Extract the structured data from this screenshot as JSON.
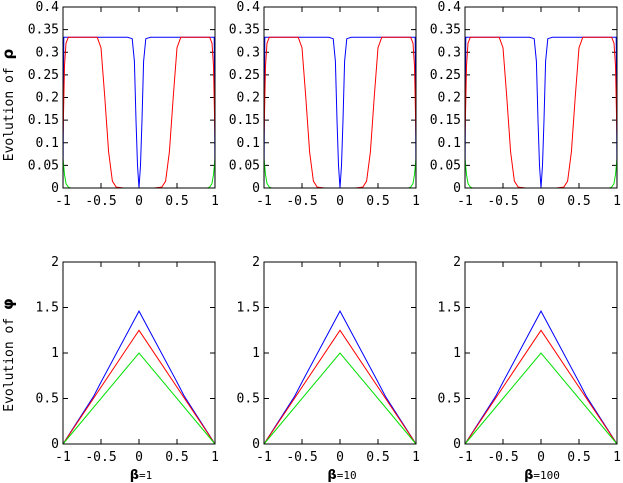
{
  "colors": {
    "blue": "#0000ff",
    "red": "#ff0000",
    "green": "#00e000"
  },
  "row_labels": {
    "rho": {
      "text": "Evolution of ",
      "symbol": "ρ"
    },
    "phi": {
      "text": "Evolution of ",
      "symbol": "φ"
    }
  },
  "column_labels": [
    {
      "symbol": "β",
      "text": "=1"
    },
    {
      "symbol": "β",
      "text": "=10"
    },
    {
      "symbol": "β",
      "text": "=100"
    }
  ],
  "axes": {
    "x_ticks": [
      "-1",
      "-0.5",
      "0",
      "0.5",
      "1"
    ],
    "x_tick_values": [
      -1,
      -0.5,
      0,
      0.5,
      1
    ],
    "rho_y_ticks": [
      "0",
      "0.05",
      "0.1",
      "0.15",
      "0.2",
      "0.25",
      "0.3",
      "0.35",
      "0.4"
    ],
    "rho_y_tick_values": [
      0,
      0.05,
      0.1,
      0.15,
      0.2,
      0.25,
      0.3,
      0.35,
      0.4
    ],
    "phi_y_ticks": [
      "0",
      "0.5",
      "1",
      "1.5",
      "2"
    ],
    "phi_y_tick_values": [
      0,
      0.5,
      1,
      1.5,
      2
    ]
  },
  "chart_data": [
    {
      "type": "line",
      "row": "rho",
      "column": 0,
      "xlim": [
        -1,
        1
      ],
      "ylim": [
        0,
        0.4
      ],
      "grid": false,
      "series": [
        {
          "color": "blue",
          "x": [
            -1,
            -0.995,
            -0.99,
            -0.5,
            -0.15,
            -0.09,
            -0.06,
            -0.04,
            -0.02,
            0,
            0.02,
            0.04,
            0.06,
            0.09,
            0.15,
            0.5,
            0.99,
            0.995,
            1
          ],
          "y": [
            0,
            0.2,
            0.333,
            0.333,
            0.333,
            0.33,
            0.28,
            0.15,
            0.05,
            0,
            0.05,
            0.15,
            0.28,
            0.33,
            0.333,
            0.333,
            0.333,
            0.2,
            0
          ]
        },
        {
          "color": "red",
          "x": [
            -1,
            -0.98,
            -0.96,
            -0.93,
            -0.88,
            -0.55,
            -0.5,
            -0.45,
            -0.4,
            -0.35,
            -0.3,
            -0.2,
            0,
            0.2,
            0.3,
            0.35,
            0.4,
            0.45,
            0.5,
            0.55,
            0.88,
            0.93,
            0.96,
            0.98,
            1
          ],
          "y": [
            0.11,
            0.27,
            0.32,
            0.333,
            0.333,
            0.333,
            0.31,
            0.2,
            0.08,
            0.015,
            0.002,
            0,
            0,
            0,
            0.002,
            0.015,
            0.08,
            0.2,
            0.31,
            0.333,
            0.333,
            0.333,
            0.32,
            0.27,
            0.11
          ]
        },
        {
          "color": "green",
          "x": [
            -1,
            -0.98,
            -0.96,
            -0.93,
            -0.9,
            0,
            0.9,
            0.93,
            0.96,
            0.98,
            1
          ],
          "y": [
            0.065,
            0.03,
            0.01,
            0.002,
            0,
            0,
            0,
            0.002,
            0.01,
            0.03,
            0.065
          ]
        }
      ]
    },
    {
      "type": "line",
      "row": "rho",
      "column": 1,
      "xlim": [
        -1,
        1
      ],
      "ylim": [
        0,
        0.4
      ],
      "grid": false,
      "series": [
        {
          "color": "blue",
          "x": [
            -1,
            -0.995,
            -0.99,
            -0.5,
            -0.15,
            -0.09,
            -0.06,
            -0.04,
            -0.02,
            0,
            0.02,
            0.04,
            0.06,
            0.09,
            0.15,
            0.5,
            0.99,
            0.995,
            1
          ],
          "y": [
            0,
            0.2,
            0.333,
            0.333,
            0.333,
            0.33,
            0.28,
            0.15,
            0.05,
            0,
            0.05,
            0.15,
            0.28,
            0.33,
            0.333,
            0.333,
            0.333,
            0.2,
            0
          ]
        },
        {
          "color": "red",
          "x": [
            -1,
            -0.98,
            -0.96,
            -0.93,
            -0.88,
            -0.55,
            -0.5,
            -0.45,
            -0.4,
            -0.35,
            -0.3,
            -0.2,
            0,
            0.2,
            0.3,
            0.35,
            0.4,
            0.45,
            0.5,
            0.55,
            0.88,
            0.93,
            0.96,
            0.98,
            1
          ],
          "y": [
            0.11,
            0.27,
            0.32,
            0.333,
            0.333,
            0.333,
            0.31,
            0.2,
            0.08,
            0.015,
            0.002,
            0,
            0,
            0,
            0.002,
            0.015,
            0.08,
            0.2,
            0.31,
            0.333,
            0.333,
            0.333,
            0.32,
            0.27,
            0.11
          ]
        },
        {
          "color": "green",
          "x": [
            -1,
            -0.98,
            -0.96,
            -0.93,
            -0.9,
            0,
            0.9,
            0.93,
            0.96,
            0.98,
            1
          ],
          "y": [
            0.065,
            0.03,
            0.01,
            0.002,
            0,
            0,
            0,
            0.002,
            0.01,
            0.03,
            0.065
          ]
        }
      ]
    },
    {
      "type": "line",
      "row": "rho",
      "column": 2,
      "xlim": [
        -1,
        1
      ],
      "ylim": [
        0,
        0.4
      ],
      "grid": false,
      "series": [
        {
          "color": "blue",
          "x": [
            -1,
            -0.995,
            -0.99,
            -0.5,
            -0.15,
            -0.09,
            -0.06,
            -0.04,
            -0.02,
            0,
            0.02,
            0.04,
            0.06,
            0.09,
            0.15,
            0.5,
            0.99,
            0.995,
            1
          ],
          "y": [
            0,
            0.2,
            0.333,
            0.333,
            0.333,
            0.33,
            0.28,
            0.15,
            0.05,
            0,
            0.05,
            0.15,
            0.28,
            0.33,
            0.333,
            0.333,
            0.333,
            0.2,
            0
          ]
        },
        {
          "color": "red",
          "x": [
            -1,
            -0.98,
            -0.96,
            -0.93,
            -0.88,
            -0.55,
            -0.5,
            -0.45,
            -0.4,
            -0.35,
            -0.3,
            -0.2,
            0,
            0.2,
            0.3,
            0.35,
            0.4,
            0.45,
            0.5,
            0.55,
            0.88,
            0.93,
            0.96,
            0.98,
            1
          ],
          "y": [
            0.11,
            0.27,
            0.32,
            0.333,
            0.333,
            0.333,
            0.31,
            0.2,
            0.08,
            0.015,
            0.002,
            0,
            0,
            0,
            0.002,
            0.015,
            0.08,
            0.2,
            0.31,
            0.333,
            0.333,
            0.333,
            0.32,
            0.27,
            0.11
          ]
        },
        {
          "color": "green",
          "x": [
            -1,
            -0.98,
            -0.96,
            -0.93,
            -0.9,
            0,
            0.9,
            0.93,
            0.96,
            0.98,
            1
          ],
          "y": [
            0.065,
            0.03,
            0.01,
            0.002,
            0,
            0,
            0,
            0.002,
            0.01,
            0.03,
            0.065
          ]
        }
      ]
    },
    {
      "type": "line",
      "row": "phi",
      "column": 0,
      "xlim": [
        -1,
        1
      ],
      "ylim": [
        0,
        2
      ],
      "grid": false,
      "series": [
        {
          "color": "blue",
          "x": [
            -1,
            -0.6,
            -0.5,
            0,
            0.5,
            0.6,
            1
          ],
          "y": [
            0,
            0.52,
            0.68,
            1.46,
            0.68,
            0.52,
            0
          ]
        },
        {
          "color": "red",
          "x": [
            -1,
            0,
            1
          ],
          "y": [
            0,
            1.25,
            0
          ]
        },
        {
          "color": "green",
          "x": [
            -1,
            0,
            1
          ],
          "y": [
            0,
            1,
            0
          ]
        }
      ]
    },
    {
      "type": "line",
      "row": "phi",
      "column": 1,
      "xlim": [
        -1,
        1
      ],
      "ylim": [
        0,
        2
      ],
      "grid": false,
      "series": [
        {
          "color": "blue",
          "x": [
            -1,
            -0.6,
            -0.5,
            0,
            0.5,
            0.6,
            1
          ],
          "y": [
            0,
            0.52,
            0.68,
            1.46,
            0.68,
            0.52,
            0
          ]
        },
        {
          "color": "red",
          "x": [
            -1,
            0,
            1
          ],
          "y": [
            0,
            1.25,
            0
          ]
        },
        {
          "color": "green",
          "x": [
            -1,
            0,
            1
          ],
          "y": [
            0,
            1,
            0
          ]
        }
      ]
    },
    {
      "type": "line",
      "row": "phi",
      "column": 2,
      "xlim": [
        -1,
        1
      ],
      "ylim": [
        0,
        2
      ],
      "grid": false,
      "series": [
        {
          "color": "blue",
          "x": [
            -1,
            -0.6,
            -0.5,
            0,
            0.5,
            0.6,
            1
          ],
          "y": [
            0,
            0.52,
            0.68,
            1.46,
            0.68,
            0.52,
            0
          ]
        },
        {
          "color": "red",
          "x": [
            -1,
            0,
            1
          ],
          "y": [
            0,
            1.25,
            0
          ]
        },
        {
          "color": "green",
          "x": [
            -1,
            0,
            1
          ],
          "y": [
            0,
            1,
            0
          ]
        }
      ]
    }
  ]
}
